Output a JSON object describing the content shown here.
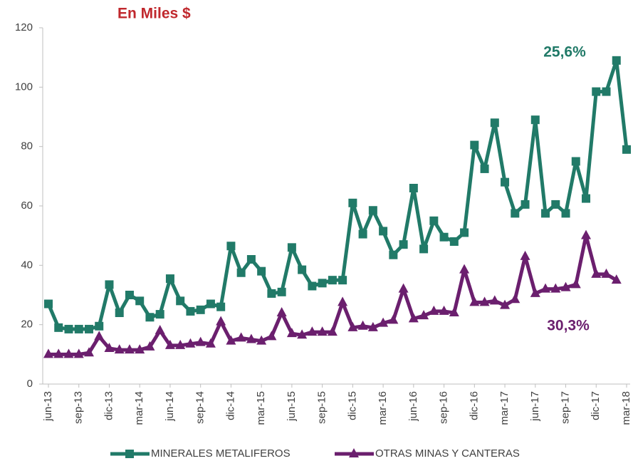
{
  "chart_data": {
    "type": "line",
    "title": "En Miles  $",
    "categories": [
      "jun-13",
      null,
      null,
      "sep-13",
      null,
      null,
      "dic-13",
      null,
      null,
      "mar-14",
      null,
      null,
      "jun-14",
      null,
      null,
      "sep-14",
      null,
      null,
      "dic-14",
      null,
      null,
      "mar-15",
      null,
      null,
      "jun-15",
      null,
      null,
      "sep-15",
      null,
      null,
      "dic-15",
      null,
      null,
      "mar-16",
      null,
      null,
      "jun-16",
      null,
      null,
      "sep-16",
      null,
      null,
      "dic-16",
      null,
      null,
      "mar-17",
      null,
      null,
      "jun-17",
      null,
      null,
      "sep-17",
      null,
      null,
      "dic-17",
      null,
      null,
      "mar-18"
    ],
    "series": [
      {
        "name": "MINERALES METALIFEROS",
        "color": "#217a68",
        "marker": "square",
        "values": [
          27,
          19,
          18.5,
          18.5,
          18.5,
          19.5,
          33.5,
          24,
          30,
          28,
          22.5,
          23.5,
          35.5,
          28,
          24.5,
          25,
          27,
          26,
          46.5,
          37.5,
          42,
          38,
          30.5,
          31,
          46,
          38.5,
          33,
          34,
          35,
          35,
          61,
          50.5,
          58.5,
          51.5,
          43.5,
          47,
          66,
          45.5,
          55,
          49.5,
          48,
          51,
          80.5,
          72.5,
          88,
          68,
          57.5,
          60.5,
          89,
          57.5,
          60.5,
          57.5,
          75,
          62.5,
          98.5,
          98.5,
          109,
          79
        ]
      },
      {
        "name": "OTRAS MINAS Y CANTERAS",
        "color": "#6b1f6e",
        "marker": "triangle",
        "values": [
          10,
          10,
          10,
          10,
          10.5,
          16,
          12,
          11.5,
          11.5,
          11.5,
          12.5,
          18,
          13,
          13,
          13.5,
          14,
          13.5,
          21,
          14.5,
          15.5,
          15,
          14.5,
          16,
          24,
          17,
          16.5,
          17.5,
          17.5,
          17.5,
          27.5,
          19,
          19.5,
          19,
          20.5,
          21.5,
          32,
          22,
          23,
          24.5,
          24.5,
          24,
          38.5,
          27.5,
          27.5,
          28,
          26.5,
          28.5,
          43,
          30.5,
          32,
          32,
          32.5,
          33.5,
          50,
          37,
          37,
          35,
          null
        ]
      }
    ],
    "annotations": [
      {
        "text": "25,6%",
        "color": "#217a68"
      },
      {
        "text": "30,3%",
        "color": "#6b1f6e"
      }
    ],
    "title_color": "#c0282d",
    "ylim": [
      0,
      120
    ],
    "yticks": [
      0,
      20,
      40,
      60,
      80,
      100,
      120
    ],
    "grid": false,
    "legend": "bottom"
  }
}
